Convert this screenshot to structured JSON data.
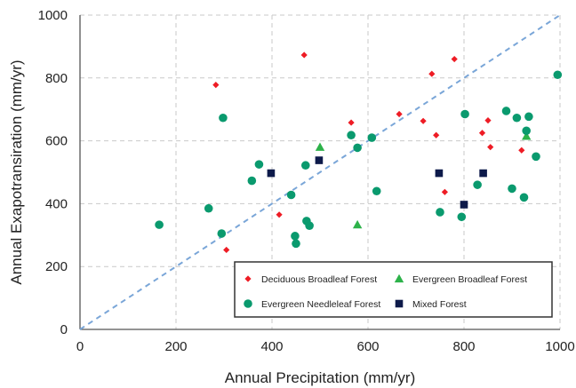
{
  "chart_data": {
    "type": "scatter",
    "xlabel": "Annual Precipitation (mm/yr)",
    "ylabel": "Annual Exapotransiration (mm/yr)",
    "xlim": [
      0,
      1000
    ],
    "ylim": [
      0,
      1000
    ],
    "xticks": [
      "0",
      "200",
      "400",
      "600",
      "800",
      "1000"
    ],
    "yticks": [
      "0",
      "200",
      "400",
      "600",
      "800",
      "1000"
    ],
    "grid": true,
    "legend_position": "bottom-right",
    "reference_line": {
      "from": [
        0,
        0
      ],
      "to": [
        1000,
        1000
      ],
      "style": "dashed",
      "color": "#7aa6d8"
    },
    "series": [
      {
        "name": "Deciduous Broadleaf Forest",
        "marker": "diamond",
        "color": "#ee1c25",
        "points": [
          [
            283,
            778
          ],
          [
            305,
            253
          ],
          [
            415,
            365
          ],
          [
            467,
            873
          ],
          [
            565,
            658
          ],
          [
            665,
            685
          ],
          [
            715,
            663
          ],
          [
            733,
            813
          ],
          [
            742,
            618
          ],
          [
            760,
            437
          ],
          [
            780,
            860
          ],
          [
            838,
            625
          ],
          [
            850,
            665
          ],
          [
            855,
            580
          ],
          [
            920,
            570
          ]
        ]
      },
      {
        "name": "Evergreen Broadleaf Forest",
        "marker": "triangle",
        "color": "#2db24a",
        "points": [
          [
            500,
            580
          ],
          [
            578,
            333
          ],
          [
            930,
            615
          ]
        ]
      },
      {
        "name": "Evergreen Needleleaf Forest",
        "marker": "circle",
        "color": "#0a9a6e",
        "points": [
          [
            165,
            333
          ],
          [
            268,
            385
          ],
          [
            295,
            305
          ],
          [
            298,
            673
          ],
          [
            358,
            473
          ],
          [
            373,
            525
          ],
          [
            440,
            428
          ],
          [
            448,
            297
          ],
          [
            450,
            273
          ],
          [
            470,
            522
          ],
          [
            472,
            345
          ],
          [
            478,
            330
          ],
          [
            565,
            618
          ],
          [
            578,
            578
          ],
          [
            608,
            610
          ],
          [
            618,
            440
          ],
          [
            750,
            373
          ],
          [
            795,
            358
          ],
          [
            802,
            685
          ],
          [
            828,
            460
          ],
          [
            888,
            695
          ],
          [
            900,
            448
          ],
          [
            910,
            673
          ],
          [
            925,
            420
          ],
          [
            930,
            632
          ],
          [
            935,
            677
          ],
          [
            950,
            550
          ],
          [
            995,
            810
          ]
        ]
      },
      {
        "name": "Mixed Forest",
        "marker": "square",
        "color": "#0d1a4a",
        "points": [
          [
            398,
            497
          ],
          [
            498,
            538
          ],
          [
            748,
            497
          ],
          [
            800,
            397
          ],
          [
            840,
            497
          ]
        ]
      }
    ]
  }
}
